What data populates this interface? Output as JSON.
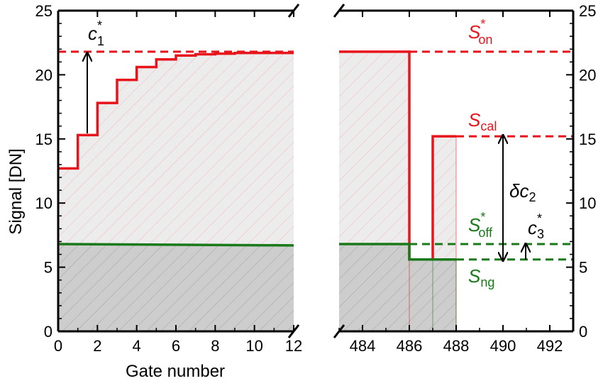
{
  "chart_data": {
    "type": "line",
    "ylabel": "Signal [DN]",
    "xlabel": "Gate number",
    "ylim": [
      0,
      25
    ],
    "yticks": [
      "0",
      "5",
      "10",
      "15",
      "20",
      "25"
    ],
    "grid": false,
    "panels": [
      {
        "name": "left",
        "xlim": [
          0,
          12
        ],
        "xticks": [
          "0",
          "2",
          "4",
          "6",
          "8",
          "10",
          "12"
        ],
        "series": [
          {
            "color": "#e8141c",
            "step_x": [
              0,
              1,
              2,
              3,
              4,
              5,
              6,
              7,
              8,
              9,
              10,
              11,
              12
            ],
            "step_y": [
              12.7,
              15.3,
              17.8,
              19.6,
              20.6,
              21.2,
              21.5,
              21.6,
              21.65,
              21.7,
              21.7,
              21.7
            ]
          },
          {
            "color": "#1a7a1a",
            "x": [
              0,
              12
            ],
            "y": [
              6.8,
              6.7
            ]
          }
        ],
        "reference_lines": [
          {
            "color": "#e8141c",
            "y": 21.8,
            "x": [
              0,
              12
            ]
          }
        ]
      },
      {
        "name": "right",
        "xlim": [
          483,
          493
        ],
        "xticks": [
          "484",
          "486",
          "488",
          "490",
          "492"
        ],
        "series": [
          {
            "color": "#e8141c",
            "x": [
              483,
              486,
              486,
              487,
              487,
              488
            ],
            "y": [
              21.8,
              21.8,
              5.6,
              5.6,
              15.2,
              15.2
            ]
          },
          {
            "color": "#1a7a1a",
            "x": [
              483,
              486,
              486,
              488
            ],
            "y": [
              6.8,
              6.8,
              5.6,
              5.6
            ]
          }
        ],
        "reference_lines": [
          {
            "color": "#e8141c",
            "y": 21.8,
            "x": [
              486,
              493
            ]
          },
          {
            "color": "#e8141c",
            "y": 15.2,
            "x": [
              488,
              493
            ]
          },
          {
            "color": "#1a7a1a",
            "y": 6.8,
            "x": [
              486,
              493
            ]
          },
          {
            "color": "#1a7a1a",
            "y": 5.6,
            "x": [
              488,
              493
            ]
          }
        ]
      }
    ],
    "annotations": {
      "c1": {
        "main": "c",
        "sub": "1",
        "sup": "*"
      },
      "s_on": {
        "main": "S",
        "sub": "on",
        "sup": "*"
      },
      "s_cal": {
        "main": "S",
        "sub": "cal"
      },
      "delta_c2": {
        "main": "δc",
        "sub": "2"
      },
      "s_off": {
        "main": "S",
        "sub": "off",
        "sup": "*"
      },
      "c3": {
        "main": "c",
        "sub": "3",
        "sup": "*"
      },
      "s_ng": {
        "main": "S",
        "sub": "ng"
      }
    }
  }
}
